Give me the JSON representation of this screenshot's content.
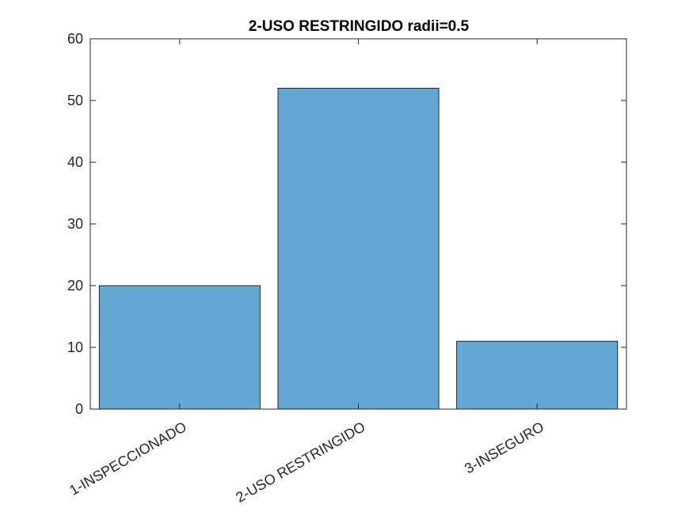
{
  "chart_data": {
    "type": "bar",
    "title": "2-USO RESTRINGIDO radii=0.5",
    "xlabel": "",
    "ylabel": "",
    "categories": [
      "1-INSPECCIONADO",
      "2-USO RESTRINGIDO",
      "3-INSEGURO"
    ],
    "values": [
      20,
      52,
      11
    ],
    "ylim": [
      0,
      60
    ],
    "yticks": [
      0,
      10,
      20,
      30,
      40,
      50,
      60
    ],
    "ytick_labels": [
      "0",
      "10",
      "20",
      "30",
      "40",
      "50",
      "60"
    ],
    "grid": false,
    "legend": "none",
    "bar_color": "#64a8d6",
    "bar_edge_color": "#000000"
  }
}
